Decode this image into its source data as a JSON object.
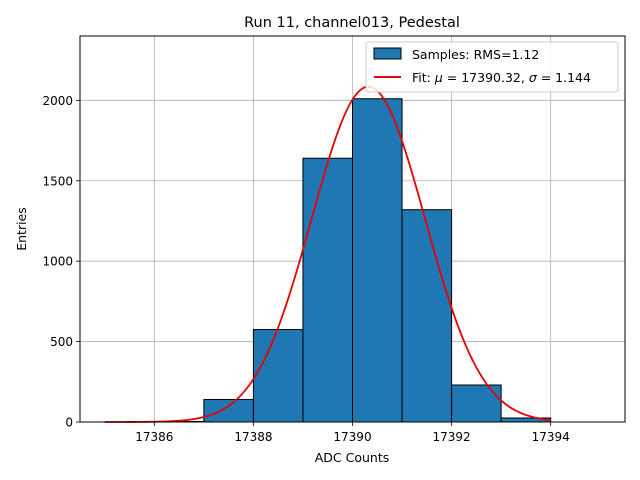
{
  "chart_data": {
    "type": "bar",
    "title": "Run 11, channel013, Pedestal",
    "xlabel": "ADC Counts",
    "ylabel": "Entries",
    "xlim": [
      17384.5,
      17395.5
    ],
    "ylim": [
      0,
      2400
    ],
    "xticks": [
      17386,
      17388,
      17390,
      17392,
      17394
    ],
    "yticks": [
      0,
      500,
      1000,
      1500,
      2000
    ],
    "grid": true,
    "legend_position": "top-right",
    "histogram": {
      "name": "Samples: RMS=1.12",
      "color": "#1f77b4",
      "edge_color": "#000000",
      "bins": [
        {
          "x0": 17386,
          "x1": 17387,
          "count": 3
        },
        {
          "x0": 17387,
          "x1": 17388,
          "count": 140
        },
        {
          "x0": 17388,
          "x1": 17389,
          "count": 575
        },
        {
          "x0": 17389,
          "x1": 17390,
          "count": 1640
        },
        {
          "x0": 17390,
          "x1": 17391,
          "count": 2010
        },
        {
          "x0": 17391,
          "x1": 17392,
          "count": 1320
        },
        {
          "x0": 17392,
          "x1": 17393,
          "count": 230
        },
        {
          "x0": 17393,
          "x1": 17394,
          "count": 25
        }
      ]
    },
    "fit": {
      "name_prefix": "Fit: ",
      "mu_symbol": "μ",
      "sigma_symbol": "σ",
      "mu_text": " = 17390.32, ",
      "sigma_text": " = 1.144",
      "color": "#e60000",
      "mu": 17390.32,
      "sigma": 1.144,
      "peak": 2085,
      "x_range": [
        17385,
        17394
      ]
    }
  }
}
